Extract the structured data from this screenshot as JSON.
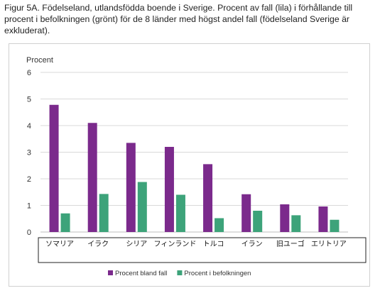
{
  "figure": {
    "title": "Figur 5A. Födelseland, utlandsfödda boende i Sverige. Procent av fall (lila) i förhållande till procent i befolkningen (grönt) för de 8 länder med högst andel fall (födelseland Sverige är exkluderat)."
  },
  "chart_data": {
    "type": "bar",
    "ylabel": "Procent",
    "xlabel": "",
    "ylim": [
      0,
      6
    ],
    "yticks": [
      0,
      1,
      2,
      3,
      4,
      5,
      6
    ],
    "grid": true,
    "legend_position": "bottom",
    "categories": [
      "ソマリア",
      "イラク",
      "シリア",
      "フィンランド",
      "トルコ",
      "イラン",
      "旧ユーゴ",
      "エリトリア"
    ],
    "series": [
      {
        "name": "Procent bland fall",
        "color": "#7b2a8c",
        "values": [
          4.78,
          4.1,
          3.35,
          3.2,
          2.55,
          1.42,
          1.04,
          0.96
        ]
      },
      {
        "name": "Procent i befolkningen",
        "color": "#3da37a",
        "values": [
          0.7,
          1.43,
          1.88,
          1.4,
          0.52,
          0.8,
          0.63,
          0.46
        ]
      }
    ]
  }
}
